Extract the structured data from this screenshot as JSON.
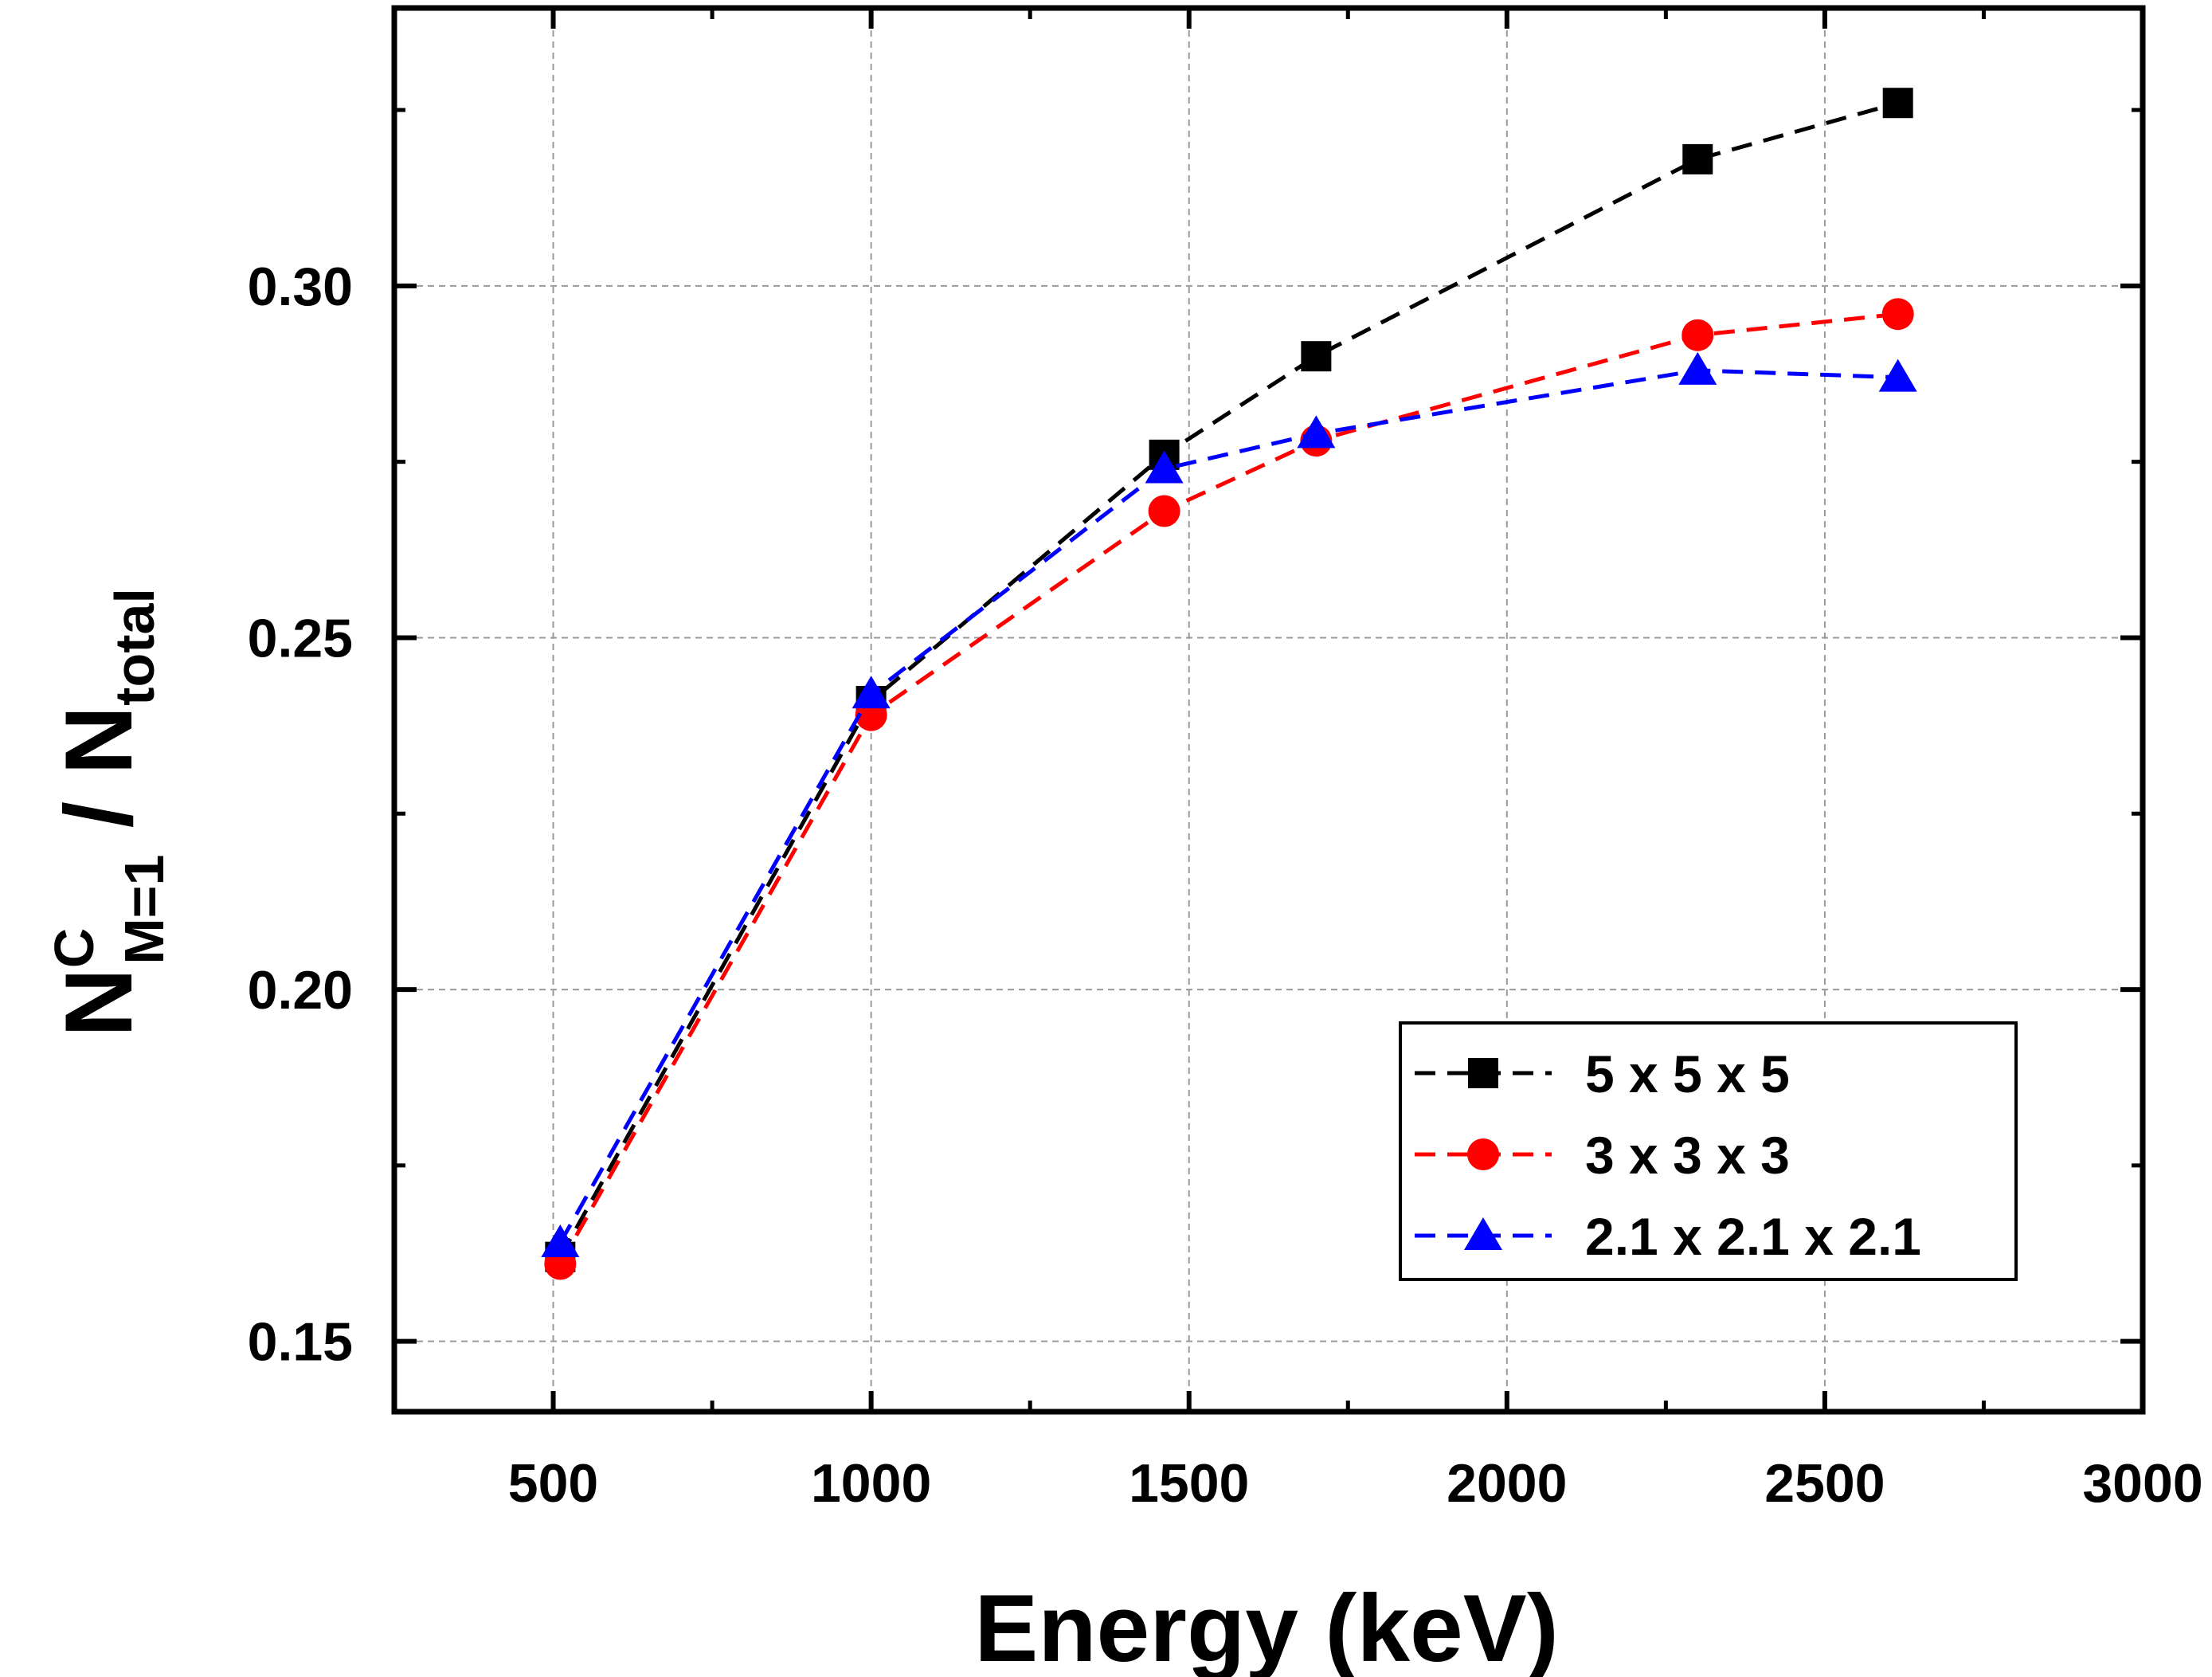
{
  "chart_data": {
    "type": "line",
    "title": "",
    "xlabel": "Energy (keV)",
    "ylabel": {
      "base": "N",
      "sup": "C",
      "sub": "M=1",
      "sep": " / ",
      "base2": "N",
      "sub2": "total"
    },
    "xlim": [
      250,
      3000
    ],
    "ylim": [
      0.14,
      0.3395
    ],
    "x_ticks": [
      500,
      1000,
      1500,
      2000,
      2500,
      3000
    ],
    "x_tick_labels": [
      "500",
      "1000",
      "1500",
      "2000",
      "2500",
      "3000"
    ],
    "y_ticks": [
      0.15,
      0.2,
      0.25,
      0.3
    ],
    "y_tick_labels": [
      "0.15",
      "0.20",
      "0.25",
      "0.30"
    ],
    "grid": true,
    "legend_position": "bottom-right",
    "series": [
      {
        "name": "5 x 5 x 5",
        "color": "#000000",
        "marker": "square",
        "x": [
          511,
          1000,
          1461,
          1700,
          2300,
          2615
        ],
        "y": [
          0.162,
          0.241,
          0.276,
          0.29,
          0.318,
          0.326
        ]
      },
      {
        "name": "3 x 3 x 3",
        "color": "#ff0000",
        "marker": "circle",
        "x": [
          511,
          1000,
          1461,
          1700,
          2300,
          2615
        ],
        "y": [
          0.161,
          0.239,
          0.268,
          0.278,
          0.293,
          0.296
        ]
      },
      {
        "name": "2.1 x 2.1 x 2.1",
        "color": "#0000ff",
        "marker": "triangle",
        "x": [
          511,
          1000,
          1461,
          1700,
          2300,
          2615
        ],
        "y": [
          0.164,
          0.242,
          0.274,
          0.279,
          0.288,
          0.287
        ]
      }
    ]
  }
}
